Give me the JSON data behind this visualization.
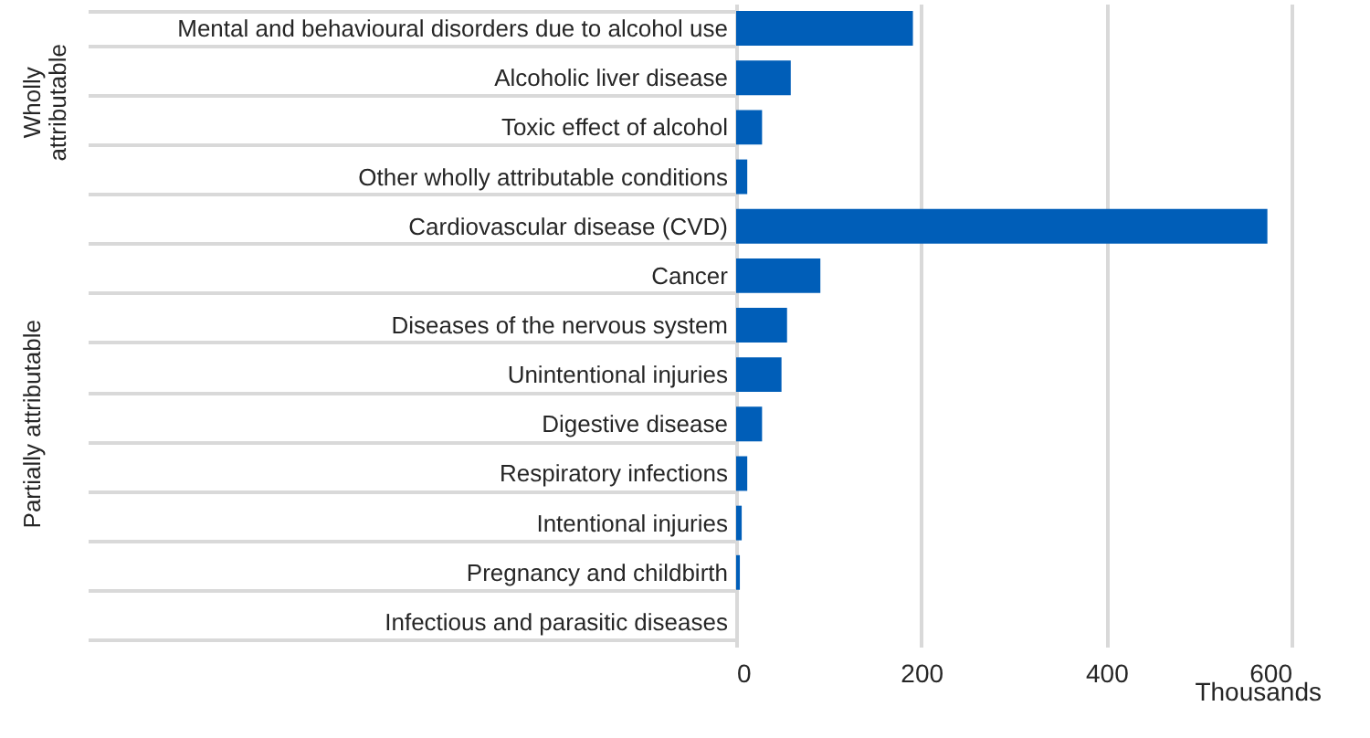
{
  "chart_data": {
    "type": "bar",
    "orientation": "horizontal",
    "xlabel": "Thousands",
    "categories": [
      "Mental and behavioural disorders due to alcohol use",
      "Alcoholic liver disease",
      "Toxic effect of alcohol",
      "Other wholly attributable conditions",
      "Cardiovascular disease (CVD)",
      "Cancer",
      "Diseases of the nervous system",
      "Unintentional injuries",
      "Digestive disease",
      "Respiratory infections",
      "Intentional injuries",
      "Pregnancy and childbirth",
      "Infectious and parasitic diseases"
    ],
    "values": [
      191,
      59,
      28,
      12,
      574,
      91,
      55,
      49,
      28,
      12,
      6,
      4,
      0
    ],
    "color": "#005eb8",
    "xlim": [
      0,
      600
    ],
    "xticks": [
      0,
      200,
      400,
      600
    ],
    "grid": "x",
    "annotations": [
      "Wholly attributable",
      "Partially attributable"
    ]
  }
}
